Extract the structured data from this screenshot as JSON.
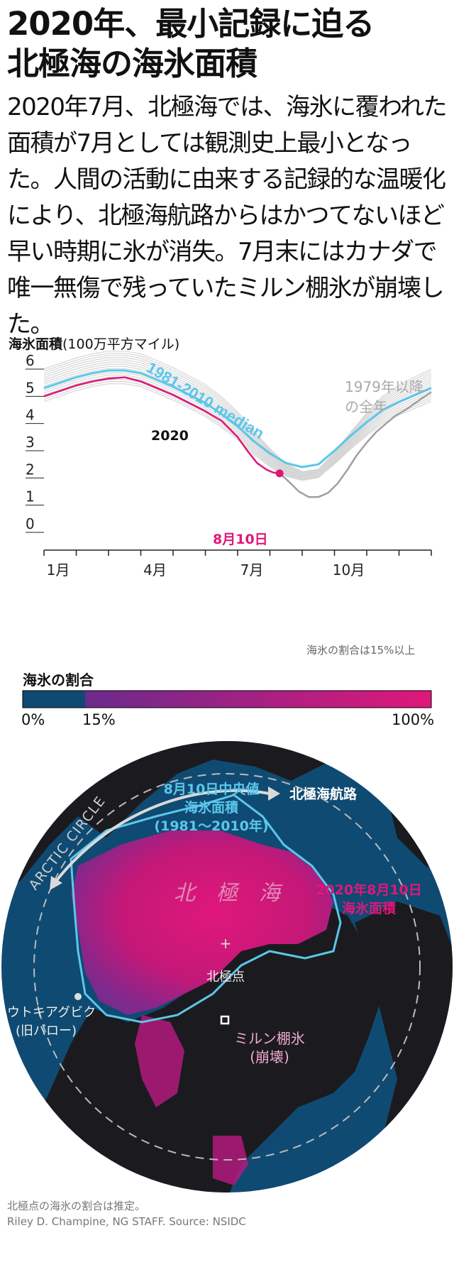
{
  "title_line1": "2020年、最小記録に迫る",
  "title_line2": "北極海の海氷面積",
  "lede": "2020年7月、北極海では、海氷に覆われた面積が7月としては観測史上最小となった。人間の活動に由来する記録的な温暖化により、北極海航路からはかつてないほど早い時期に氷が消失。7月末にはカナダで唯一無傷で残っていたミルン棚氷が崩壊した。",
  "chart_data": {
    "type": "line",
    "ylabel_bold": "海氷面積",
    "ylabel_unit": "(100万平方マイル)",
    "ylim": [
      0,
      6
    ],
    "yticks": [
      "0",
      "1",
      "2",
      "3",
      "4",
      "5",
      "6"
    ],
    "xticks": [
      {
        "label": "1月",
        "month": 1
      },
      {
        "label": "4月",
        "month": 4
      },
      {
        "label": "7月",
        "month": 7
      },
      {
        "label": "10月",
        "month": 10
      }
    ],
    "xrange_months": [
      1,
      13
    ],
    "series": [
      {
        "name": "1981-2010 median",
        "color": "#5bc7ea",
        "x": [
          1,
          1.5,
          2,
          2.5,
          3,
          3.5,
          4,
          4.5,
          5,
          5.5,
          6,
          6.5,
          7,
          7.5,
          8,
          8.5,
          9,
          9.5,
          10,
          10.5,
          11,
          11.5,
          12,
          12.5,
          13
        ],
        "y": [
          5.3,
          5.5,
          5.7,
          5.85,
          5.95,
          5.95,
          5.85,
          5.6,
          5.35,
          5.05,
          4.75,
          4.35,
          3.9,
          3.35,
          2.9,
          2.55,
          2.4,
          2.5,
          3.0,
          3.55,
          4.05,
          4.5,
          4.8,
          5.05,
          5.3
        ]
      },
      {
        "name": "2020",
        "color": "#e0177a",
        "x": [
          1,
          1.5,
          2,
          2.5,
          3,
          3.5,
          4,
          4.5,
          5,
          5.5,
          6,
          6.5,
          7,
          7.3,
          7.6,
          7.9,
          8.1,
          8.3
        ],
        "y": [
          5.0,
          5.2,
          5.4,
          5.55,
          5.65,
          5.7,
          5.55,
          5.3,
          5.05,
          4.75,
          4.45,
          4.1,
          3.5,
          3.0,
          2.55,
          2.3,
          2.2,
          2.17
        ]
      },
      {
        "name": "2020-range-low",
        "color": "#a0a0a0",
        "x": [
          8.3,
          8.6,
          8.9,
          9.2,
          9.5,
          9.8,
          10.1,
          10.4,
          10.7,
          11,
          11.3,
          11.6,
          11.9,
          12.2,
          12.5,
          12.8,
          13
        ],
        "y": [
          2.17,
          1.85,
          1.5,
          1.3,
          1.3,
          1.45,
          1.8,
          2.3,
          2.85,
          3.3,
          3.7,
          4.0,
          4.3,
          4.5,
          4.75,
          5.0,
          5.15
        ]
      }
    ],
    "annotation_median": "1981-2010 median",
    "annotation_2020": "2020",
    "annotation_all_years_1": "1979年以降",
    "annotation_all_years_2": "の全年",
    "annotation_point": "8月10日",
    "point": {
      "month": 8.3,
      "value": 2.17
    },
    "note": "海氷の割合は15%以上"
  },
  "legend": {
    "title": "海氷の割合",
    "tick0": "0%",
    "tick15": "15%",
    "tick100": "100%",
    "color_water": "#0f4a72",
    "color_low": "#6b2a8c",
    "color_high": "#e0177a"
  },
  "map": {
    "arctic_circle": "ARCTIC CIRCLE",
    "median_label_1": "8月10日中央値",
    "median_label_2": "海氷面積",
    "median_label_3": "(1981〜2010年)",
    "route": "北極海航路",
    "ocean": "北　極　海",
    "north_pole": "北極点",
    "extent_2020_1": "2020年8月10日",
    "extent_2020_2": "海氷面積",
    "utqiagvik_1": "ウトキアグビク",
    "utqiagvik_2": "(旧バロー)",
    "milne_1": "ミルン棚氷",
    "milne_2": "(崩壊)"
  },
  "footer_1": "北極点の海氷の割合は推定。",
  "footer_2": "Riley D. Champine, NG STAFF. Source: NSIDC"
}
